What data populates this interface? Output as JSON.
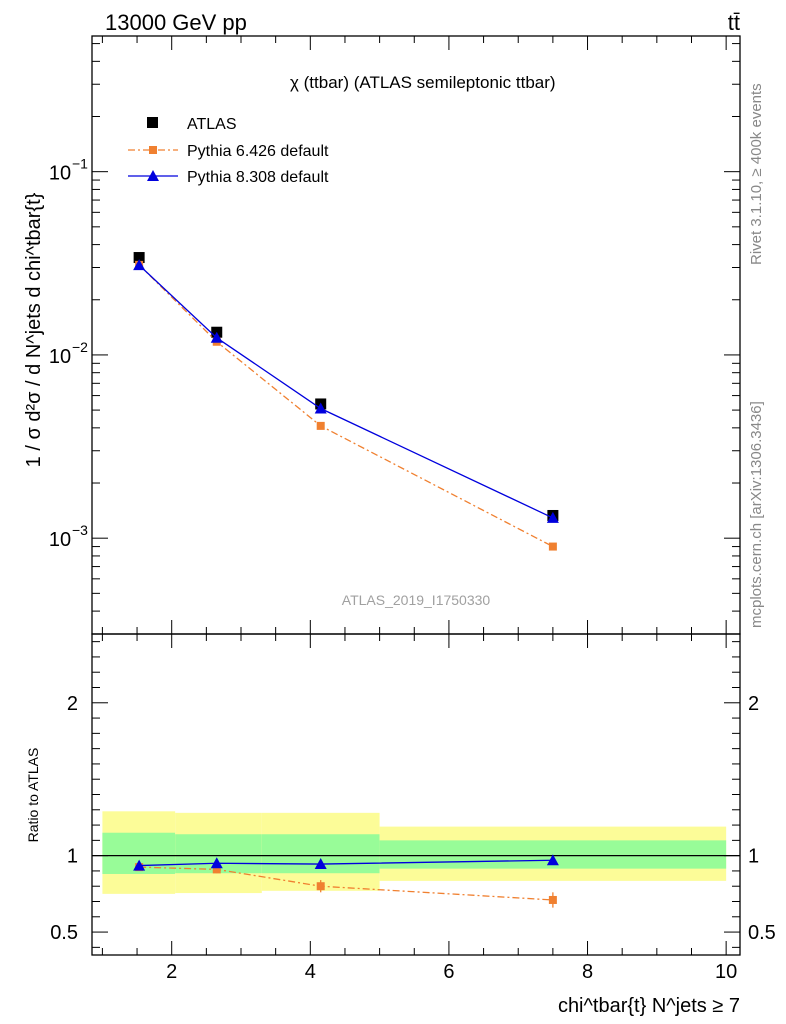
{
  "header": {
    "left": "13000 GeV pp",
    "right": "tt̄"
  },
  "side_labels": {
    "rivet": "Rivet 3.1.10, ≥ 400k events",
    "mcplots": "mcplots.cern.ch [arXiv:1306.3436]"
  },
  "chart_data": {
    "type": "line",
    "title": "χ (ttbar) (ATLAS semileptonic ttbar)",
    "analysis_id": "ATLAS_2019_I1750330",
    "xlabel": "chi^tbar{t} N^jets ≥ 7",
    "ylabel": "1 / σ d²σ / d N^jets d chi^tbar{t}",
    "ratio_ylabel": "Ratio to ATLAS",
    "xlim": [
      0.85,
      10.2
    ],
    "ylim": [
      0.0003,
      0.55
    ],
    "yscale": "log",
    "ratio_ylim": [
      0.35,
      2.45
    ],
    "x_ticks": [
      2,
      4,
      6,
      8,
      10
    ],
    "y_ticks": [
      0.001,
      0.01,
      0.1
    ],
    "ratio_ticks": [
      0.5,
      1,
      2
    ],
    "legend_position": "top-left",
    "series": [
      {
        "name": "ATLAS",
        "color": "#000000",
        "marker": "square",
        "x": [
          1.53,
          2.65,
          4.15,
          7.5
        ],
        "values": [
          0.034,
          0.0133,
          0.0054,
          0.00133
        ]
      },
      {
        "name": "Pythia 6.426 default",
        "color": "#f08030",
        "marker": "square",
        "line": "dashdot",
        "x": [
          1.53,
          2.65,
          4.15,
          7.5
        ],
        "values": [
          0.031,
          0.0118,
          0.0041,
          0.0009
        ],
        "ratio": [
          0.925,
          0.91,
          0.8,
          0.71
        ],
        "ratio_err": [
          0.015,
          0.025,
          0.04,
          0.05
        ]
      },
      {
        "name": "Pythia 8.308 default",
        "color": "#0000dd",
        "marker": "triangle",
        "line": "solid",
        "x": [
          1.53,
          2.65,
          4.15,
          7.5
        ],
        "values": [
          0.0309,
          0.0124,
          0.0051,
          0.00129
        ],
        "ratio": [
          0.935,
          0.95,
          0.945,
          0.97
        ],
        "ratio_err": [
          0.01,
          0.01,
          0.01,
          0.015
        ]
      }
    ],
    "uncertainty_bands": [
      {
        "x_low": 1.0,
        "x_high": 2.05,
        "inner": [
          0.88,
          1.15
        ],
        "outer": [
          0.75,
          1.29
        ]
      },
      {
        "x_low": 2.05,
        "x_high": 3.3,
        "inner": [
          0.885,
          1.14
        ],
        "outer": [
          0.755,
          1.28
        ]
      },
      {
        "x_low": 3.3,
        "x_high": 5.0,
        "inner": [
          0.885,
          1.14
        ],
        "outer": [
          0.77,
          1.28
        ]
      },
      {
        "x_low": 5.0,
        "x_high": 10.0,
        "inner": [
          0.915,
          1.1
        ],
        "outer": [
          0.835,
          1.19
        ]
      }
    ],
    "band_colors": {
      "inner": "#98fc98",
      "outer": "#fcfc98"
    }
  }
}
